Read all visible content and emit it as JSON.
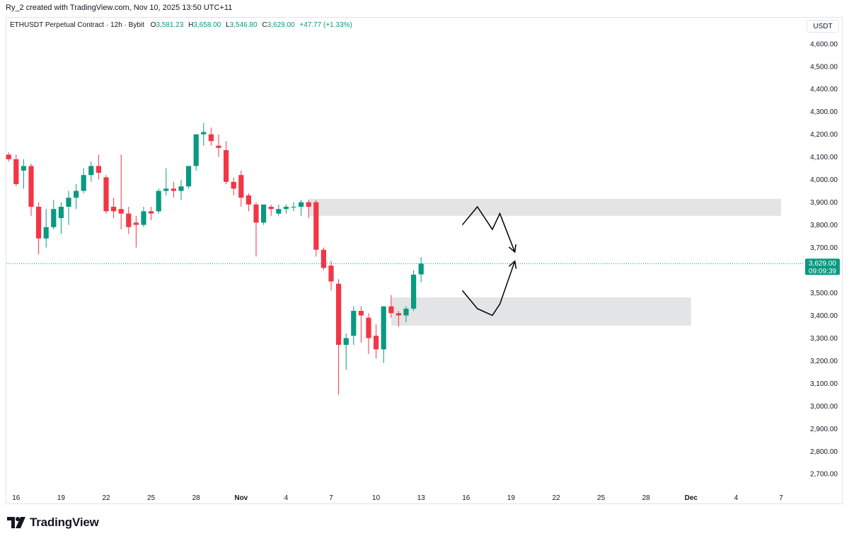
{
  "header": {
    "author_line": "Ry_2 created with TradingView.com, Nov 10, 2025 13:50 UTC+11"
  },
  "legend": {
    "symbol": "ETHUSDT Perpetual Contract · 12h · Bybit",
    "o_label": "O",
    "o_value": "3,581.23",
    "h_label": "H",
    "h_value": "3,658.00",
    "l_label": "L",
    "l_value": "3,546.80",
    "c_label": "C",
    "c_value": "3,629.00",
    "change": "+47.77 (+1.33%)"
  },
  "currency": "USDT",
  "price_badge": {
    "price": "3,629.00",
    "countdown": "09:09:39"
  },
  "brand": {
    "name": "TradingView"
  },
  "colors": {
    "up": "#089981",
    "down": "#f23645",
    "zone": "#e3e4e6",
    "badge": "#089981",
    "axis_text": "#131722",
    "border": "#e0e3eb"
  },
  "chart_data": {
    "type": "candlestick",
    "symbol": "ETHUSDT",
    "interval": "12h",
    "ylim": [
      2640,
      4660
    ],
    "y_ticks": [
      2700,
      2800,
      2900,
      3000,
      3100,
      3200,
      3300,
      3400,
      3500,
      3600,
      3700,
      3800,
      3900,
      4000,
      4100,
      4200,
      4300,
      4400,
      4500,
      4600
    ],
    "y_tick_labels": [
      "2,700.00",
      "2,800.00",
      "2,900.00",
      "3,000.00",
      "3,100.00",
      "3,200.00",
      "3,300.00",
      "3,400.00",
      "3,500.00",
      "3,600.00",
      "3,700.00",
      "3,800.00",
      "3,900.00",
      "4,000.00",
      "4,100.00",
      "4,200.00",
      "4,300.00",
      "4,400.00",
      "4,500.00",
      "4,600.00"
    ],
    "x_ticks": [
      {
        "label": "16",
        "bar": 1
      },
      {
        "label": "19",
        "bar": 7
      },
      {
        "label": "22",
        "bar": 13
      },
      {
        "label": "25",
        "bar": 19
      },
      {
        "label": "28",
        "bar": 25
      },
      {
        "label": "Nov",
        "bar": 31
      },
      {
        "label": "4",
        "bar": 37
      },
      {
        "label": "7",
        "bar": 43
      },
      {
        "label": "10",
        "bar": 49
      },
      {
        "label": "13",
        "bar": 55
      },
      {
        "label": "16",
        "bar": 61
      },
      {
        "label": "19",
        "bar": 67
      },
      {
        "label": "22",
        "bar": 73
      },
      {
        "label": "25",
        "bar": 79
      },
      {
        "label": "28",
        "bar": 85
      },
      {
        "label": "Dec",
        "bar": 91
      },
      {
        "label": "4",
        "bar": 97
      },
      {
        "label": "7",
        "bar": 103
      }
    ],
    "last_price": 3629,
    "candles": [
      {
        "o": 4110,
        "h": 4120,
        "l": 4080,
        "c": 4090
      },
      {
        "o": 4090,
        "h": 4110,
        "l": 3970,
        "c": 3980
      },
      {
        "o": 4040,
        "h": 4090,
        "l": 3960,
        "c": 4060
      },
      {
        "o": 4060,
        "h": 4070,
        "l": 3840,
        "c": 3880
      },
      {
        "o": 3880,
        "h": 3900,
        "l": 3670,
        "c": 3740
      },
      {
        "o": 3740,
        "h": 3870,
        "l": 3700,
        "c": 3790
      },
      {
        "o": 3790,
        "h": 3910,
        "l": 3780,
        "c": 3870
      },
      {
        "o": 3830,
        "h": 3900,
        "l": 3760,
        "c": 3880
      },
      {
        "o": 3880,
        "h": 3950,
        "l": 3800,
        "c": 3920
      },
      {
        "o": 3920,
        "h": 3980,
        "l": 3870,
        "c": 3950
      },
      {
        "o": 3950,
        "h": 4050,
        "l": 3940,
        "c": 4020
      },
      {
        "o": 4020,
        "h": 4080,
        "l": 3990,
        "c": 4060
      },
      {
        "o": 4060,
        "h": 4110,
        "l": 4000,
        "c": 4030
      },
      {
        "o": 4010,
        "h": 4020,
        "l": 3850,
        "c": 3860
      },
      {
        "o": 3880,
        "h": 3920,
        "l": 3830,
        "c": 3860
      },
      {
        "o": 3870,
        "h": 4110,
        "l": 3780,
        "c": 3850
      },
      {
        "o": 3850,
        "h": 3880,
        "l": 3760,
        "c": 3790
      },
      {
        "o": 3810,
        "h": 3840,
        "l": 3700,
        "c": 3800
      },
      {
        "o": 3800,
        "h": 3880,
        "l": 3790,
        "c": 3860
      },
      {
        "o": 3860,
        "h": 3880,
        "l": 3820,
        "c": 3850
      },
      {
        "o": 3860,
        "h": 3960,
        "l": 3850,
        "c": 3950
      },
      {
        "o": 3950,
        "h": 4050,
        "l": 3930,
        "c": 3960
      },
      {
        "o": 3960,
        "h": 3990,
        "l": 3920,
        "c": 3950
      },
      {
        "o": 3950,
        "h": 4000,
        "l": 3910,
        "c": 3970
      },
      {
        "o": 3970,
        "h": 4060,
        "l": 3960,
        "c": 4060
      },
      {
        "o": 4060,
        "h": 4190,
        "l": 4040,
        "c": 4200
      },
      {
        "o": 4200,
        "h": 4250,
        "l": 4150,
        "c": 4210
      },
      {
        "o": 4200,
        "h": 4230,
        "l": 4150,
        "c": 4170
      },
      {
        "o": 4150,
        "h": 4200,
        "l": 4100,
        "c": 4140
      },
      {
        "o": 4130,
        "h": 4170,
        "l": 3980,
        "c": 3990
      },
      {
        "o": 3990,
        "h": 4010,
        "l": 3930,
        "c": 3960
      },
      {
        "o": 4020,
        "h": 4040,
        "l": 3880,
        "c": 3920
      },
      {
        "o": 3930,
        "h": 3940,
        "l": 3860,
        "c": 3890
      },
      {
        "o": 3890,
        "h": 3900,
        "l": 3660,
        "c": 3810
      },
      {
        "o": 3810,
        "h": 3890,
        "l": 3800,
        "c": 3890
      },
      {
        "o": 3880,
        "h": 3890,
        "l": 3840,
        "c": 3870
      },
      {
        "o": 3850,
        "h": 3890,
        "l": 3840,
        "c": 3870
      },
      {
        "o": 3870,
        "h": 3890,
        "l": 3850,
        "c": 3880
      },
      {
        "o": 3880,
        "h": 3900,
        "l": 3860,
        "c": 3880
      },
      {
        "o": 3880,
        "h": 3910,
        "l": 3840,
        "c": 3900
      },
      {
        "o": 3900,
        "h": 3910,
        "l": 3830,
        "c": 3880
      },
      {
        "o": 3900,
        "h": 3910,
        "l": 3660,
        "c": 3690
      },
      {
        "o": 3690,
        "h": 3700,
        "l": 3600,
        "c": 3610
      },
      {
        "o": 3620,
        "h": 3640,
        "l": 3510,
        "c": 3550
      },
      {
        "o": 3540,
        "h": 3560,
        "l": 3050,
        "c": 3270
      },
      {
        "o": 3270,
        "h": 3320,
        "l": 3160,
        "c": 3300
      },
      {
        "o": 3310,
        "h": 3440,
        "l": 3270,
        "c": 3420
      },
      {
        "o": 3420,
        "h": 3440,
        "l": 3280,
        "c": 3400
      },
      {
        "o": 3390,
        "h": 3410,
        "l": 3230,
        "c": 3300
      },
      {
        "o": 3310,
        "h": 3360,
        "l": 3210,
        "c": 3250
      },
      {
        "o": 3250,
        "h": 3440,
        "l": 3190,
        "c": 3440
      },
      {
        "o": 3440,
        "h": 3490,
        "l": 3390,
        "c": 3410
      },
      {
        "o": 3410,
        "h": 3420,
        "l": 3350,
        "c": 3400
      },
      {
        "o": 3400,
        "h": 3440,
        "l": 3370,
        "c": 3430
      },
      {
        "o": 3430,
        "h": 3600,
        "l": 3420,
        "c": 3580
      },
      {
        "o": 3581.23,
        "h": 3658,
        "l": 3546.8,
        "c": 3629
      }
    ],
    "zones": [
      {
        "type": "supply",
        "top": 3915,
        "bottom": 3840,
        "start_bar": 40,
        "end_bar": 103
      },
      {
        "type": "demand",
        "top": 3480,
        "bottom": 3355,
        "start_bar": 51,
        "end_bar": 91
      }
    ],
    "projection_paths": [
      {
        "name": "upper",
        "points": [
          [
            60.5,
            3800
          ],
          [
            62.5,
            3880
          ],
          [
            64.5,
            3780
          ],
          [
            65.5,
            3850
          ],
          [
            67.5,
            3680
          ]
        ]
      },
      {
        "name": "lower",
        "points": [
          [
            60.5,
            3510
          ],
          [
            62.5,
            3430
          ],
          [
            64.5,
            3400
          ],
          [
            65.5,
            3450
          ],
          [
            67.5,
            3640
          ]
        ]
      }
    ]
  }
}
